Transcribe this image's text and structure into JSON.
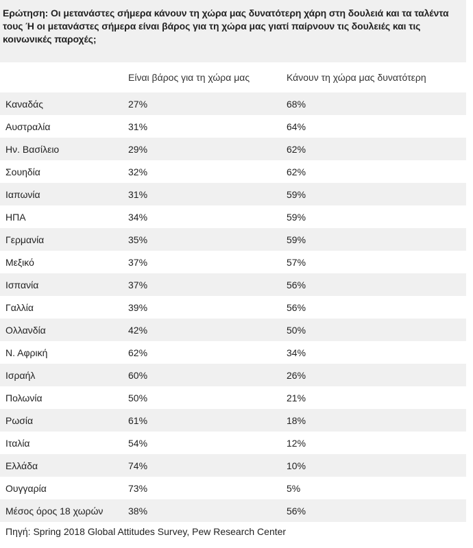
{
  "question": "Ερώτηση: Οι μετανάστες σήμερα κάνουν τη χώρα μας δυνατότερη χάρη στη δουλειά και τα ταλέντα τους Ή οι μετανάστες σήμερα είναι βάρος για τη χώρα μας γιατί παίρνουν τις δουλειές και τις κοινωνικές παροχές;",
  "columns": [
    "",
    "Είναι βάρος για τη χώρα μας",
    "Κάνουν τη χώρα μας δυνατότερη"
  ],
  "rows": [
    {
      "country": "Καναδάς",
      "burden": "27%",
      "stronger": "68%"
    },
    {
      "country": "Αυστραλία",
      "burden": "31%",
      "stronger": "64%"
    },
    {
      "country": "Ην. Βασίλειο",
      "burden": "29%",
      "stronger": "62%"
    },
    {
      "country": "Σουηδία",
      "burden": "32%",
      "stronger": "62%"
    },
    {
      "country": "Ιαπωνία",
      "burden": "31%",
      "stronger": "59%"
    },
    {
      "country": "ΗΠΑ",
      "burden": "34%",
      "stronger": "59%"
    },
    {
      "country": "Γερμανία",
      "burden": "35%",
      "stronger": "59%"
    },
    {
      "country": "Μεξικό",
      "burden": "37%",
      "stronger": "57%"
    },
    {
      "country": "Ισπανία",
      "burden": "37%",
      "stronger": "56%"
    },
    {
      "country": "Γαλλία",
      "burden": "39%",
      "stronger": "56%"
    },
    {
      "country": "Ολλανδία",
      "burden": "42%",
      "stronger": "50%"
    },
    {
      "country": "Ν. Αφρική",
      "burden": "62%",
      "stronger": "34%"
    },
    {
      "country": "Ισραήλ",
      "burden": "60%",
      "stronger": "26%"
    },
    {
      "country": "Πολωνία",
      "burden": "50%",
      "stronger": "21%"
    },
    {
      "country": "Ρωσία",
      "burden": "61%",
      "stronger": "18%"
    },
    {
      "country": "Ιταλία",
      "burden": "54%",
      "stronger": "12%"
    },
    {
      "country": "Ελλάδα",
      "burden": "74%",
      "stronger": "10%"
    },
    {
      "country": "Ουγγαρία",
      "burden": "73%",
      "stronger": "5%"
    },
    {
      "country": "Μέσος όρος 18 χωρών",
      "burden": "38%",
      "stronger": "56%"
    }
  ],
  "source": "Πηγή: Spring 2018 Global Attitudes Survey, Pew Research Center"
}
